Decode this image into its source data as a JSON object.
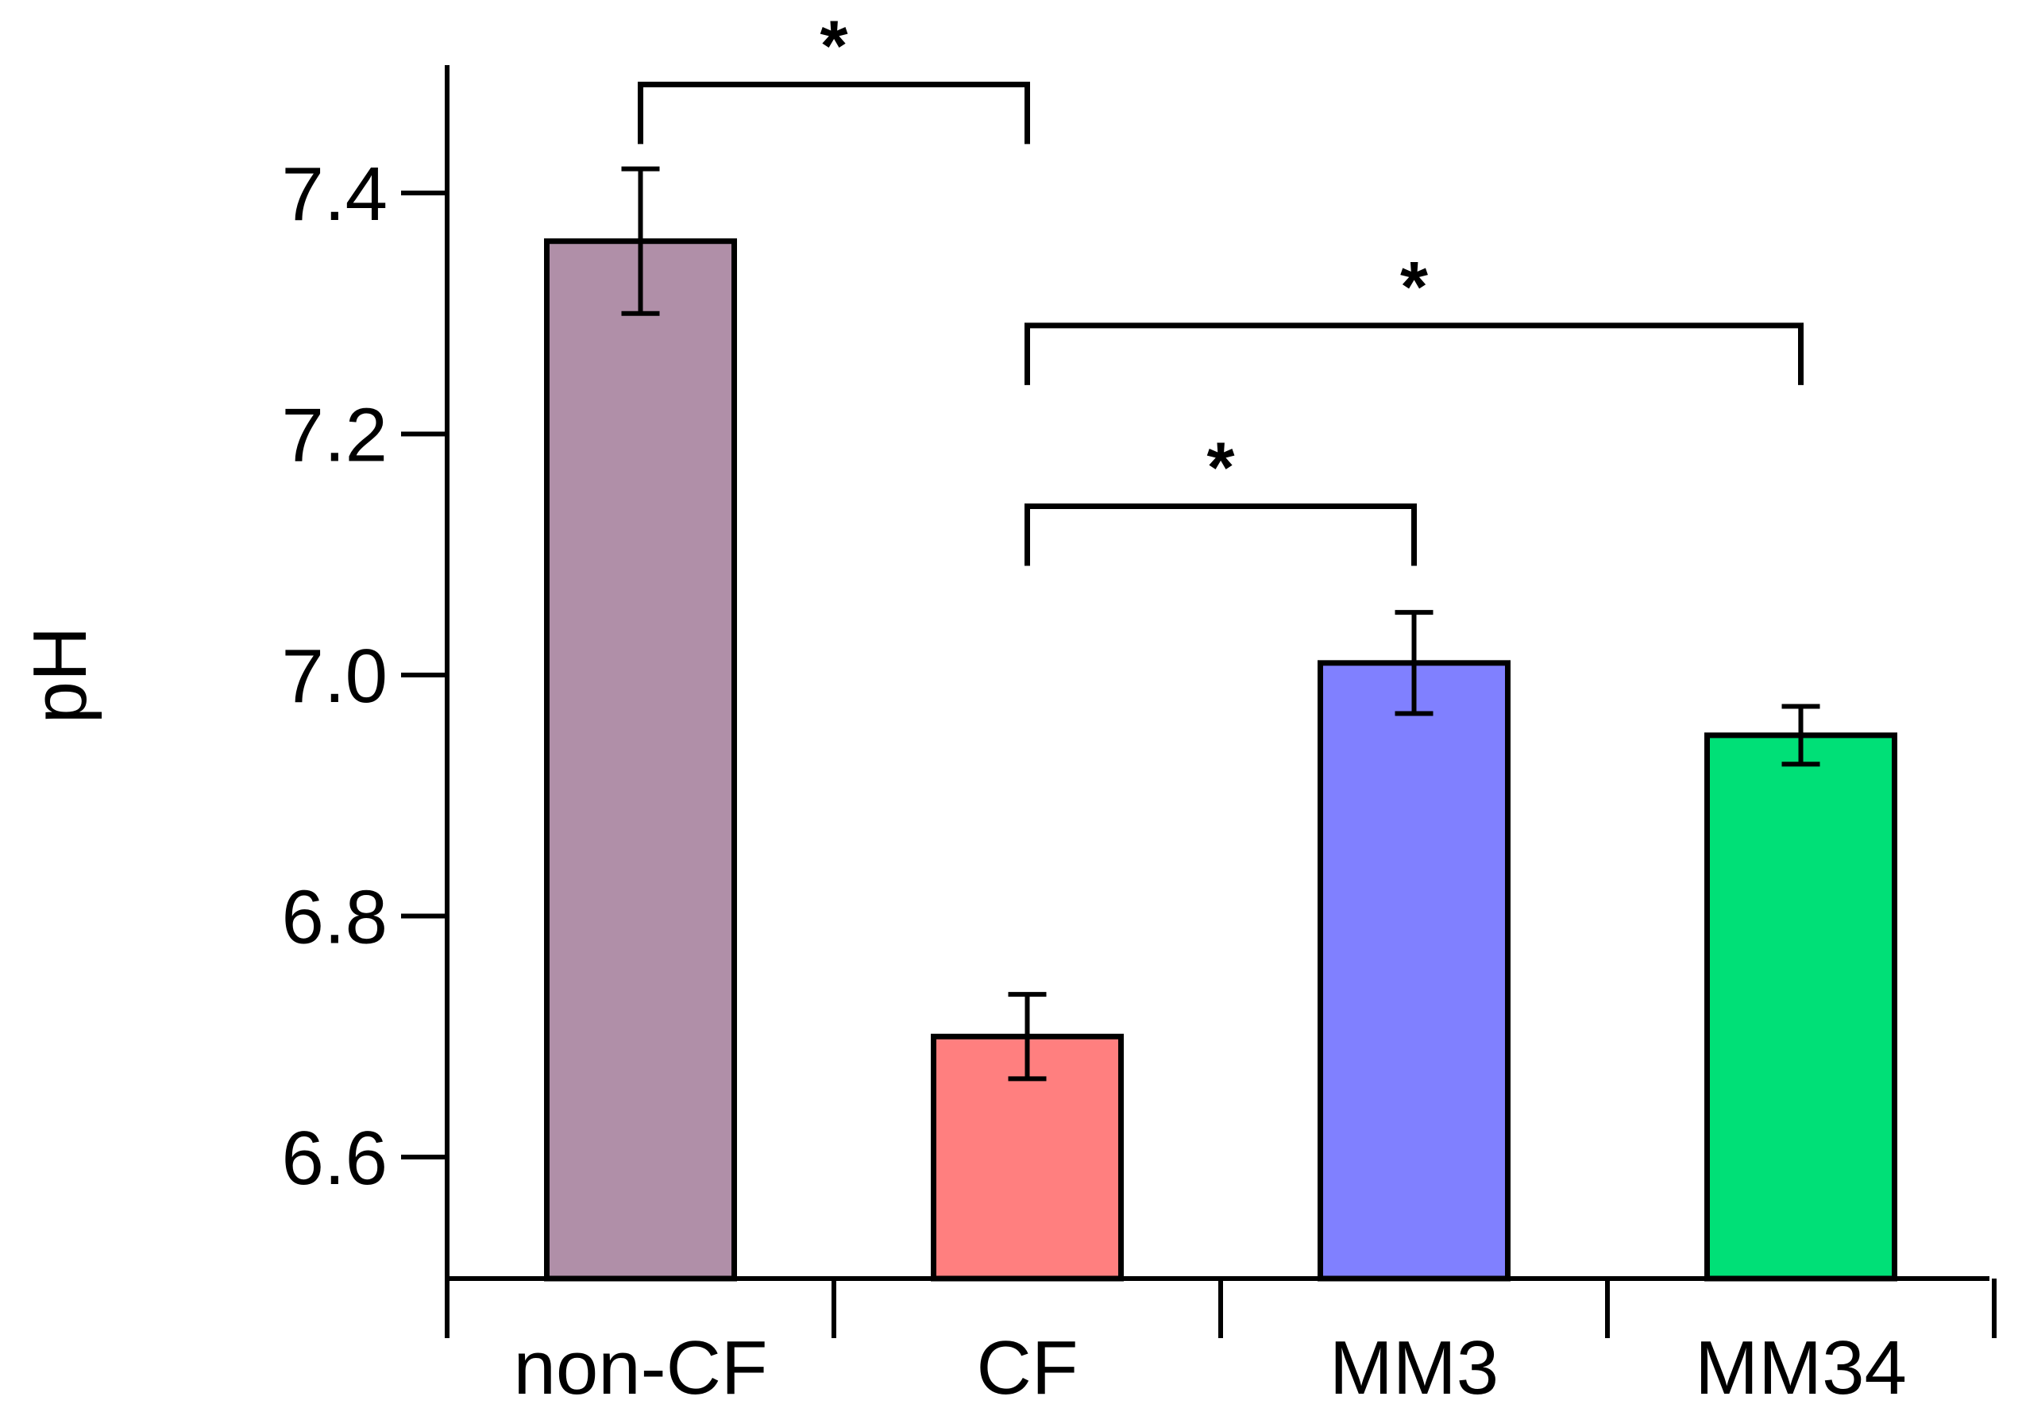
{
  "chart_data": {
    "type": "bar",
    "title": "",
    "xlabel": "",
    "ylabel": "pH",
    "ylim": [
      6.5,
      7.5
    ],
    "yticks": [
      6.6,
      6.8,
      7.0,
      7.2,
      7.4
    ],
    "ytick_labels": [
      "6.6",
      "6.8",
      "7.0",
      "7.2",
      "7.4"
    ],
    "categories": [
      "non-CF",
      "CF",
      "MM3",
      "MM34"
    ],
    "values": [
      7.36,
      6.7,
      7.01,
      6.95
    ],
    "errors": [
      0.06,
      0.035,
      0.042,
      0.024
    ],
    "colors": [
      "#b08fa8",
      "#ff7f7f",
      "#8080ff",
      "#00e077"
    ],
    "significance": [
      {
        "from": 0,
        "to": 1,
        "label": "*",
        "level": 7.49
      },
      {
        "from": 1,
        "to": 3,
        "label": "*",
        "level": 7.29
      },
      {
        "from": 1,
        "to": 2,
        "label": "*",
        "level": 7.14
      }
    ],
    "grid": false,
    "legend": "none"
  }
}
